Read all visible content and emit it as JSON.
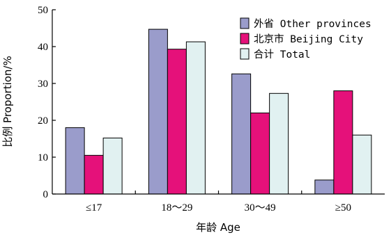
{
  "chart_data": {
    "type": "bar",
    "categories": [
      "≤17",
      "18～29",
      "30～49",
      "≥50"
    ],
    "series": [
      {
        "name": "外省 Other provinces",
        "color": "#9a9ccb",
        "values": [
          18.0,
          44.7,
          32.6,
          3.8
        ]
      },
      {
        "name": "北京市 Beijing City",
        "color": "#e5117a",
        "values": [
          10.5,
          39.3,
          22.0,
          28.0
        ]
      },
      {
        "name": "合计 Total",
        "color": "#e1f1f1",
        "values": [
          15.2,
          41.3,
          27.3,
          16.0
        ]
      }
    ],
    "ylabel": "比例 Proportion/%",
    "xlabel": "年龄 Age",
    "ylim": [
      0,
      50
    ],
    "yticks": [
      0,
      10,
      20,
      30,
      40,
      50
    ],
    "grid": false,
    "legend_position": "top-right"
  }
}
